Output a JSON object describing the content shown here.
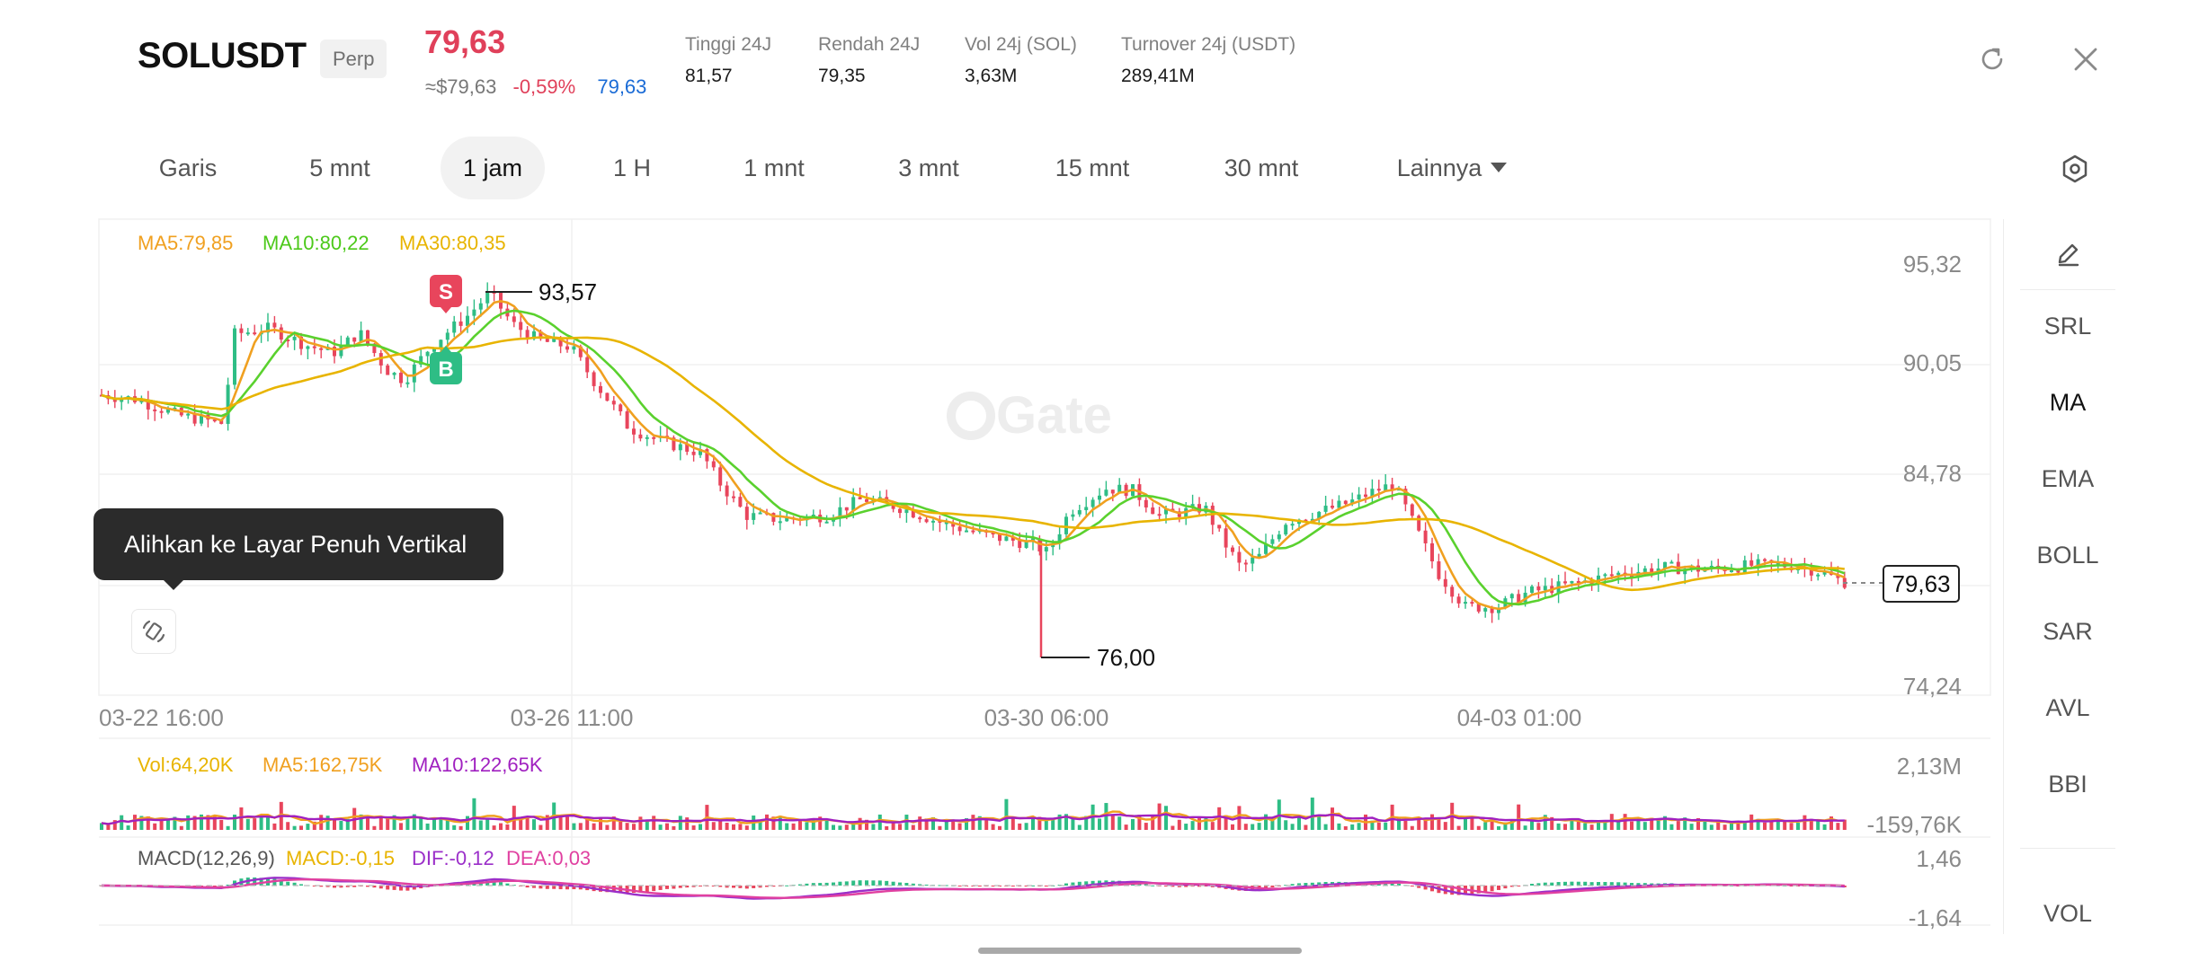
{
  "header": {
    "symbol": "SOLUSDT",
    "contract_type": "Perp",
    "last_price": "79,63",
    "usd_price": "≈$79,63",
    "change_pct": "-0,59%",
    "mark_price": "79,63",
    "stats": [
      {
        "label": "Tinggi 24J",
        "value": "81,57"
      },
      {
        "label": "Rendah 24J",
        "value": "79,35"
      },
      {
        "label": "Vol 24j (SOL)",
        "value": "3,63M"
      },
      {
        "label": "Turnover 24j (USDT)",
        "value": "289,41M"
      }
    ],
    "icons": {
      "rotate": "rotate-screen-icon",
      "close": "close-icon"
    }
  },
  "intervals": {
    "items": [
      "Garis",
      "5 mnt",
      "1 jam",
      "1 H",
      "1 mnt",
      "3 mnt",
      "15 mnt",
      "30 mnt"
    ],
    "active": "1 jam",
    "more_label": "Lainnya",
    "settings_icon": "settings-hexagon-icon"
  },
  "chart": {
    "indicators": {
      "ma5": "MA5:79,85",
      "ma10": "MA10:80,22",
      "ma30": "MA30:80,35"
    },
    "price_axis": [
      "95,32",
      "90,05",
      "84,78",
      "74,24"
    ],
    "current_price_tag": "79,63",
    "high_label": "93,57",
    "low_label": "76,00",
    "sell_marker": "S",
    "buy_marker": "B",
    "watermark": "Gate",
    "time_axis": [
      "03-22 16:00",
      "03-26 11:00",
      "03-30 06:00",
      "04-03 01:00"
    ],
    "volume": {
      "vol": "Vol:64,20K",
      "ma5": "MA5:162,75K",
      "ma10": "MA10:122,65K",
      "axis_top": "2,13M",
      "axis_bottom": "-159,76K"
    },
    "macd": {
      "title": "MACD(12,26,9)",
      "macd": "MACD:-0,15",
      "dif": "DIF:-0,12",
      "dea": "DEA:0,03",
      "axis_top": "1,46",
      "axis_bottom": "-1,64"
    },
    "colors": {
      "up": "#2ebd85",
      "down": "#e8455c",
      "ma5": "#f0a020",
      "ma10": "#5ad12e",
      "ma30": "#e8b400",
      "ma10_volume": "#a020c0",
      "dif": "#9b2fc9",
      "dea": "#e040a0"
    }
  },
  "tools": {
    "draw_icon": "pencil-icon",
    "items": [
      "SRL",
      "MA",
      "EMA",
      "BOLL",
      "SAR",
      "AVL",
      "BBI",
      "VOL"
    ],
    "active": "MA"
  },
  "tooltip": {
    "text": "Alihkan ke Layar Penuh Vertikal",
    "button_icon": "rotate-orientation-icon"
  }
}
